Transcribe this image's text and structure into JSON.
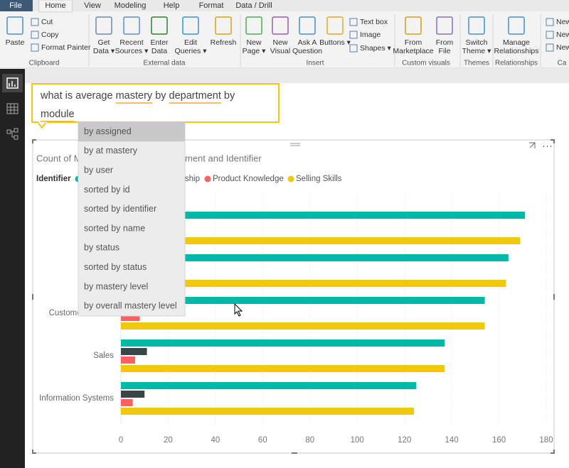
{
  "ribbon": {
    "tabs": [
      "File",
      "Home",
      "View",
      "Modeling",
      "Help",
      "Format",
      "Data / Drill"
    ],
    "selected_tab": "Home",
    "groups": [
      {
        "name": "Clipboard",
        "big": [
          {
            "lines": [
              "Paste"
            ]
          }
        ],
        "small": [
          "Cut",
          "Copy",
          "Format Painter"
        ]
      },
      {
        "name": "External data",
        "big": [
          {
            "lines": [
              "Get",
              "Data ▾"
            ]
          },
          {
            "lines": [
              "Recent",
              "Sources ▾"
            ]
          },
          {
            "lines": [
              "Enter",
              "Data"
            ]
          },
          {
            "lines": [
              "Edit",
              "Queries ▾"
            ]
          },
          {
            "lines": [
              "Refresh"
            ]
          }
        ],
        "small": []
      },
      {
        "name": "Insert",
        "big": [
          {
            "lines": [
              "New",
              "Page ▾"
            ]
          },
          {
            "lines": [
              "New",
              "Visual"
            ]
          },
          {
            "lines": [
              "Ask A",
              "Question"
            ]
          },
          {
            "lines": [
              "Buttons ▾"
            ]
          }
        ],
        "small": [
          "Text box",
          "Image",
          "Shapes ▾"
        ]
      },
      {
        "name": "Custom visuals",
        "big": [
          {
            "lines": [
              "From",
              "Marketplace"
            ]
          },
          {
            "lines": [
              "From",
              "File"
            ]
          }
        ],
        "small": []
      },
      {
        "name": "Themes",
        "big": [
          {
            "lines": [
              "Switch",
              "Theme ▾"
            ]
          }
        ],
        "small": []
      },
      {
        "name": "Relationships",
        "big": [
          {
            "lines": [
              "Manage",
              "Relationships"
            ]
          }
        ],
        "small": []
      },
      {
        "name": "Ca",
        "big": [],
        "small": [
          "New",
          "New",
          "New"
        ]
      }
    ]
  },
  "qa": {
    "lines": [
      [
        {
          "text": "what is average "
        },
        {
          "text": "mastery",
          "underlined": true
        },
        {
          "text": " by "
        },
        {
          "text": "department",
          "underlined": true
        },
        {
          "text": " by"
        }
      ],
      [
        {
          "text": "module",
          "underlined": true
        }
      ]
    ]
  },
  "suggestions": {
    "items": [
      "by assigned",
      "by at mastery",
      "by user",
      "sorted by id",
      "sorted by identifier",
      "sorted by name",
      "by status",
      "sorted by status",
      "by mastery level",
      "by overall mastery level"
    ],
    "highlighted": 0
  },
  "chart_data": {
    "type": "hbar",
    "title_fragments": [
      "Count of M",
      "ment and Identifier"
    ],
    "legend_title": "Identifier",
    "categories": [
      null,
      null,
      "Customer Service",
      "Sales",
      "Information Systems"
    ],
    "series": [
      {
        "name": null,
        "color": "#01b8aa",
        "values": [
          171,
          164,
          154,
          137,
          125
        ]
      },
      {
        "name": "ship",
        "color": "#374649",
        "values": [
          null,
          null,
          null,
          11,
          10
        ]
      },
      {
        "name": "Product Knowledge",
        "color": "#fd625e",
        "values": [
          null,
          null,
          8,
          6,
          5
        ]
      },
      {
        "name": "Selling Skills",
        "color": "#f2c80f",
        "values": [
          169,
          163,
          154,
          137,
          124
        ]
      }
    ],
    "xlim": [
      0,
      180
    ],
    "xticks": [
      0,
      20,
      40,
      60,
      80,
      100,
      120,
      140,
      160,
      180
    ],
    "grid": true
  }
}
